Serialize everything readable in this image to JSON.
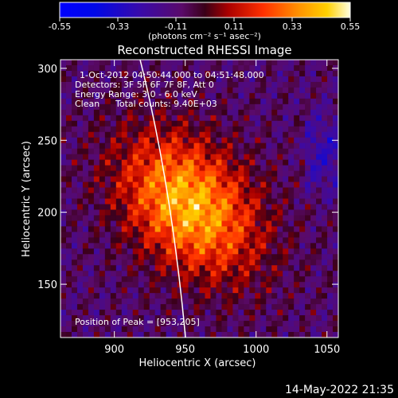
{
  "chart_data": {
    "type": "heatmap",
    "title": "Reconstructed RHESSI Image",
    "colorbar": {
      "ticks": [
        "-0.55",
        "-0.33",
        "-0.11",
        "0.11",
        "0.33",
        "0.55"
      ],
      "range": [
        -0.55,
        0.55
      ],
      "unit_label": "(photons cm⁻² s⁻¹ asec⁻²)"
    },
    "xlabel": "Heliocentric X (arcsec)",
    "ylabel": "Heliocentric Y (arcsec)",
    "xlim": [
      862,
      1058
    ],
    "ylim": [
      113,
      306
    ],
    "xticks": [
      900,
      950,
      1000,
      1050
    ],
    "yticks": [
      150,
      200,
      250,
      300
    ],
    "annotations": {
      "time": "1-Oct-2012 04:50:44.000 to 04:51:48.000",
      "detectors": "Detectors: 3F 5F 6F 7F 8F, Att 0",
      "energy": "Energy Range: 3.0 - 6.0 keV",
      "clean_label": "Clean",
      "counts": "Total counts: 9.40E+03",
      "peak": "Position of Peak = [953,205]"
    },
    "peak": [
      953,
      205
    ],
    "footer_date": "14-May-2022 21:35",
    "colors": {
      "limb": "#ffffff",
      "background": "#000000"
    }
  }
}
